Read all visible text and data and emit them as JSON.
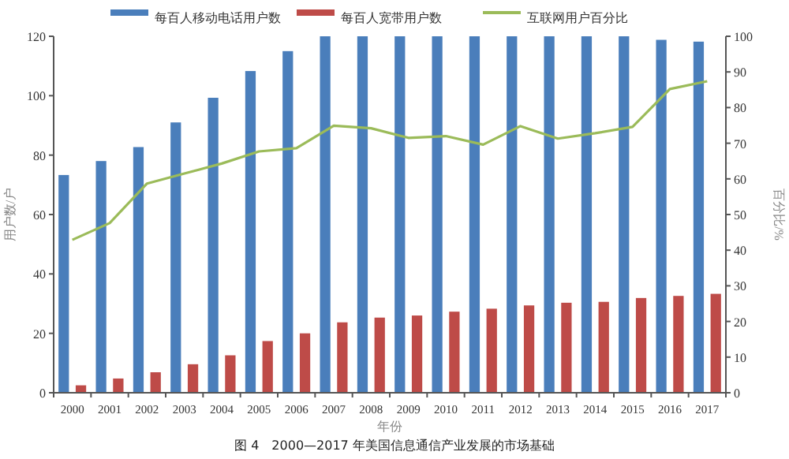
{
  "chart_data": {
    "type": "bar",
    "xlabel": "年份",
    "ylabel": "用户数/户",
    "y2label": "百分比/%",
    "categories": [
      "2000",
      "2001",
      "2002",
      "2003",
      "2004",
      "2005",
      "2006",
      "2007",
      "2008",
      "2009",
      "2010",
      "2011",
      "2012",
      "2013",
      "2014",
      "2015",
      "2016",
      "2017"
    ],
    "series": [
      {
        "name": "每百人移动电话用户数",
        "color": "#4a7ebb",
        "values": [
          73.3,
          78,
          82.7,
          91,
          99.3,
          108.3,
          115,
          120,
          120,
          120,
          120,
          120,
          120,
          120,
          120,
          120,
          118.8,
          118.2
        ]
      },
      {
        "name": "每百人宽带用户数",
        "color": "#be4b48",
        "values": [
          2.5,
          4.8,
          6.9,
          9.6,
          12.6,
          17.4,
          20,
          23.7,
          25.3,
          26,
          27.3,
          28.3,
          29.4,
          30.3,
          30.6,
          31.9,
          32.6,
          33.3
        ]
      },
      {
        "name": "互联网用户百分比",
        "type": "line",
        "axis": "y2",
        "color": "#9bbb59",
        "values": [
          42.9,
          47.6,
          58.7,
          61.5,
          64.3,
          67.7,
          68.6,
          74.9,
          74.2,
          71.5,
          72,
          69.6,
          74.8,
          71.3,
          72.8,
          74.6,
          85.2,
          87.4
        ]
      }
    ],
    "ylim": [
      0,
      120
    ],
    "yticks": [
      0,
      20,
      40,
      60,
      80,
      100,
      120
    ],
    "y2lim": [
      0,
      100
    ],
    "y2ticks": [
      0,
      10,
      20,
      30,
      40,
      50,
      60,
      70,
      80,
      90,
      100
    ],
    "grid": false,
    "legend": "top",
    "marker": "none",
    "line_style": "solid",
    "annotations": [
      "图 4　2000—2017 年美国信息通信产业发展的市场基础"
    ]
  }
}
